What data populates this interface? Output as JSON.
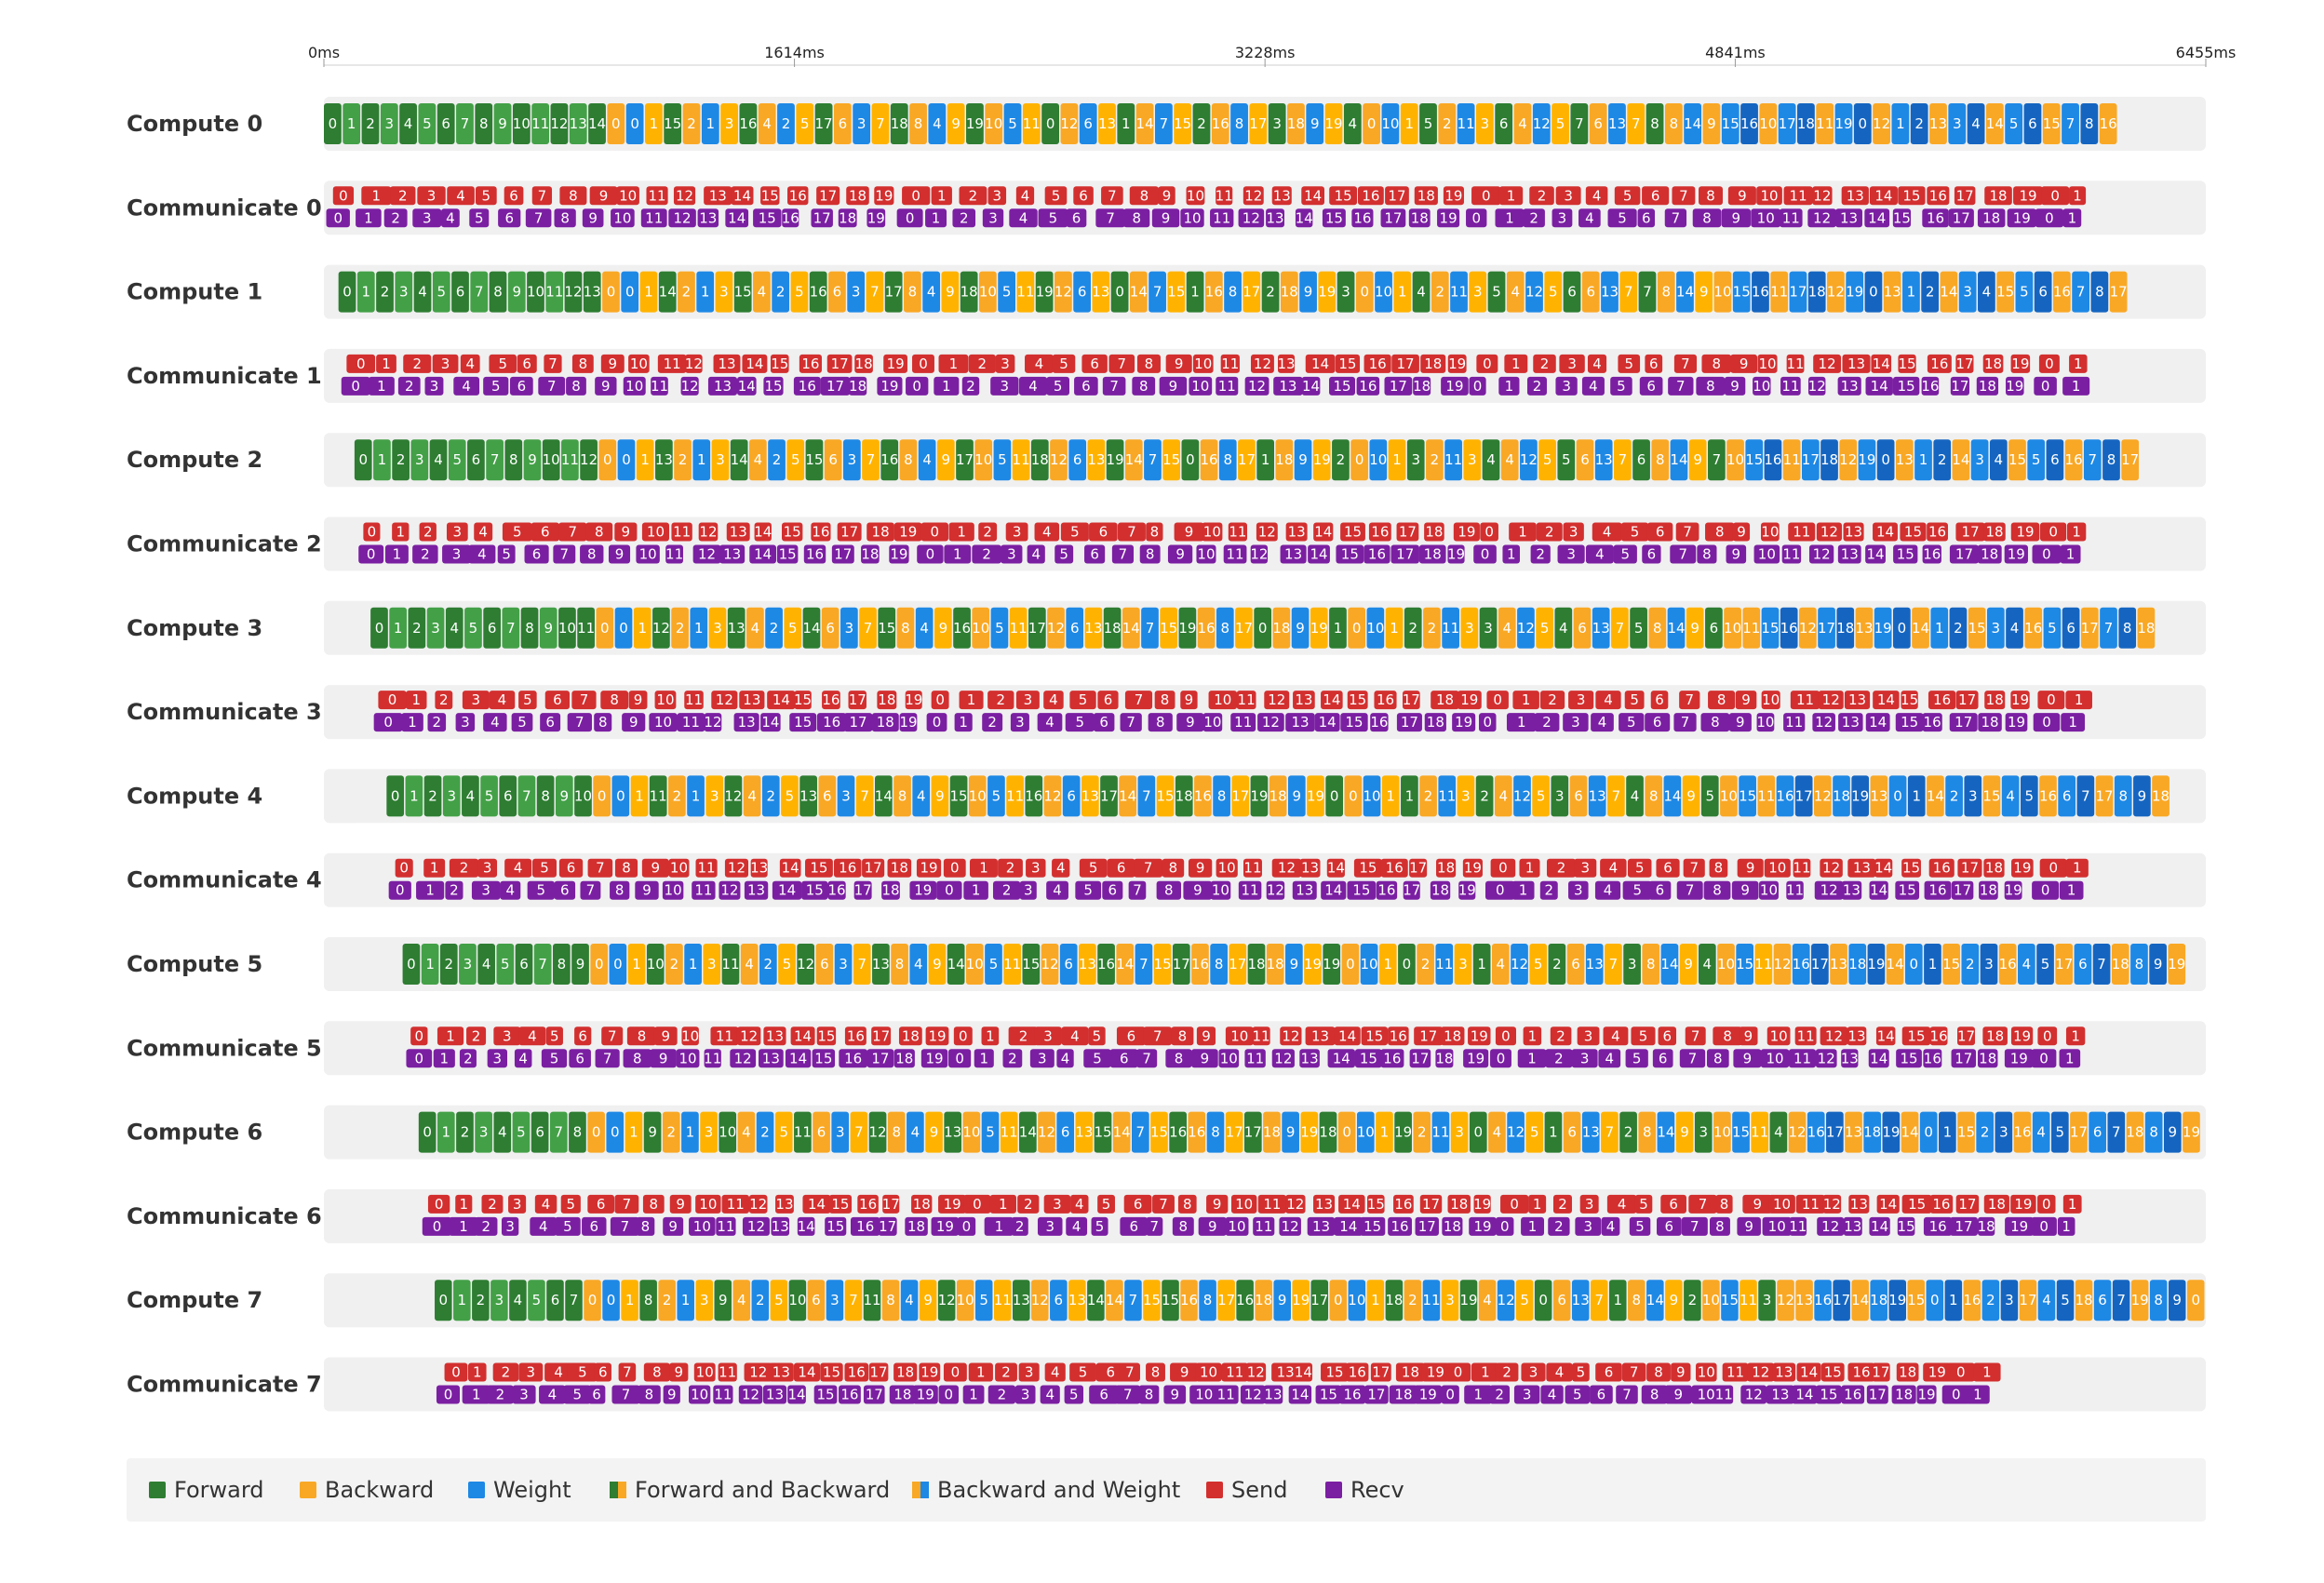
{
  "chart_data": {
    "type": "timeline",
    "title": "",
    "x_unit": "ms",
    "xlim": [
      0,
      6455
    ],
    "x_ticks": [
      "0ms",
      "1614ms",
      "3228ms",
      "4841ms",
      "6455ms"
    ],
    "x_tick_values": [
      0,
      1614,
      3228,
      4841,
      6455
    ],
    "microbatches": 20,
    "stages": 8,
    "rows": [
      "Compute 0",
      "Communicate 0",
      "Compute 1",
      "Communicate 1",
      "Compute 2",
      "Communicate 2",
      "Compute 3",
      "Communicate 3",
      "Compute 4",
      "Communicate 4",
      "Compute 5",
      "Communicate 5",
      "Compute 6",
      "Communicate 6",
      "Compute 7",
      "Communicate 7"
    ],
    "row_kinds": [
      "compute",
      "comm",
      "compute",
      "comm",
      "compute",
      "comm",
      "compute",
      "comm",
      "compute",
      "comm",
      "compute",
      "comm",
      "compute",
      "comm",
      "compute",
      "comm"
    ],
    "stage_start_ms": [
      0,
      50,
      105,
      160,
      215,
      270,
      325,
      380
    ],
    "stage_end_ms": [
      6155,
      6190,
      6230,
      6285,
      6335,
      6390,
      6440,
      6455
    ],
    "ops_per_stage_approx": 95,
    "comm_end_ms": [
      6085,
      6080,
      6075,
      6072,
      6070,
      6065,
      6060,
      5740
    ],
    "legend": [
      {
        "name": "Forward",
        "color": "#2e7d32"
      },
      {
        "name": "Backward",
        "color": "#f9a825"
      },
      {
        "name": "Weight",
        "color": "#1e88e5"
      },
      {
        "name": "Forward and Backward",
        "color": "#2e7d32",
        "color2": "#f9a825"
      },
      {
        "name": "Backward and Weight",
        "color": "#f9a825",
        "color2": "#1e88e5"
      },
      {
        "name": "Send",
        "color": "#d32f2f"
      },
      {
        "name": "Recv",
        "color": "#7b1fa2"
      }
    ],
    "colors": {
      "forward": "#2e7d32",
      "forward_alt": "#43a047",
      "backward": "#f9a825",
      "backward_alt": "#ffb300",
      "weight": "#1e88e5",
      "weight_alt": "#1565c0",
      "send": "#d32f2f",
      "recv": "#7b1fa2",
      "lane_bg": "#f0f0f0",
      "legend_bg": "#f3f3f3"
    }
  }
}
